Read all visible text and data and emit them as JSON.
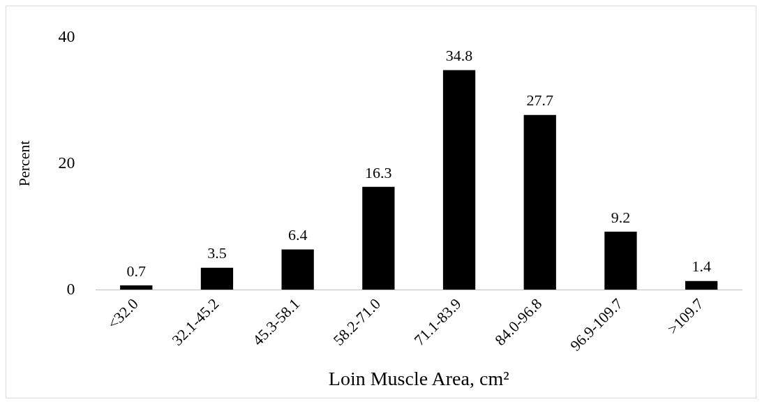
{
  "chart_data": {
    "type": "bar",
    "xlabel": "Loin Muscle Area, cm²",
    "ylabel": "Percent",
    "categories": [
      "<32.0",
      "32.1-45.2",
      "45.3-58.1",
      "58.2-71.0",
      "71.1-83.9",
      "84.0-96.8",
      "96.9-109.7",
      ">109.7"
    ],
    "values": [
      0.7,
      3.5,
      6.4,
      16.3,
      34.8,
      27.7,
      9.2,
      1.4
    ],
    "color": "#000000",
    "ylim": [
      0,
      40
    ],
    "yticks": [
      0,
      20,
      40
    ],
    "grid": false,
    "legend": false,
    "data_labels": true
  }
}
